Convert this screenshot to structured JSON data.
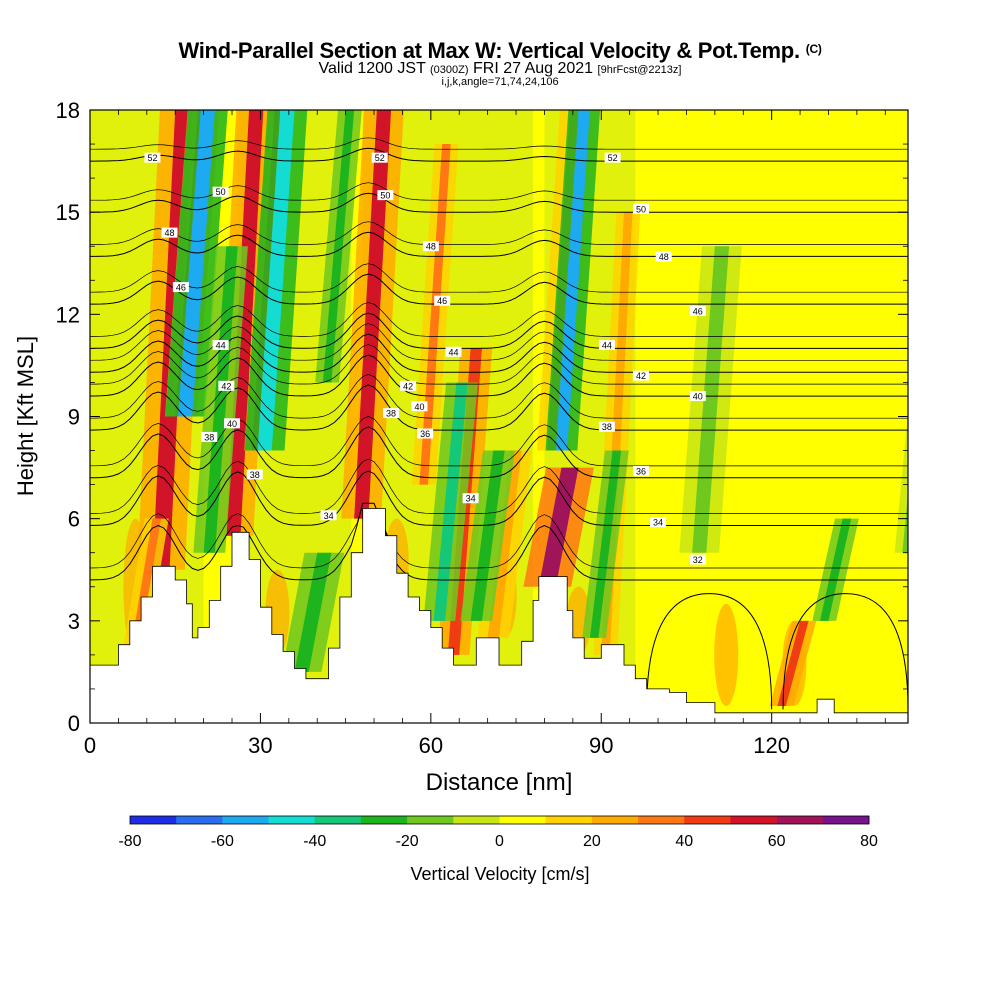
{
  "header": {
    "title": "Wind-Parallel Section at Max W: Vertical Velocity & Pot.Temp.",
    "copyright": "(C)",
    "valid_prefix": "Valid 1200 JST",
    "valid_utc": "(0300Z)",
    "valid_date": "FRI 27 Aug 2021",
    "forecast": "[9hrFcst@2213z]",
    "indices": "i,j,k,angle=71,74,24,106"
  },
  "chart_data": {
    "type": "heatmap",
    "xlabel": "Distance [nm]",
    "ylabel": "Height [Kft MSL]",
    "xlim": [
      0,
      144
    ],
    "ylim": [
      0,
      18
    ],
    "xticks": [
      0,
      30,
      60,
      90,
      120
    ],
    "yticks": [
      0,
      3,
      6,
      9,
      12,
      15,
      18
    ],
    "colorbar": {
      "label": "Vertical Velocity [cm/s]",
      "range": [
        -80,
        80
      ],
      "ticks": [
        -80,
        -60,
        -40,
        -20,
        0,
        20,
        40,
        60,
        80
      ],
      "colors": [
        "#1f2ee6",
        "#2a6ef0",
        "#1eaaf0",
        "#14dcd2",
        "#14c878",
        "#1eb41e",
        "#6ec81e",
        "#c8e614",
        "#ffff00",
        "#ffd200",
        "#ffaa00",
        "#ff7814",
        "#f03c14",
        "#d21428",
        "#a0145a",
        "#78148c"
      ]
    },
    "terrain": [
      [
        0,
        1.7
      ],
      [
        3,
        1.7
      ],
      [
        5,
        2.3
      ],
      [
        7,
        3.0
      ],
      [
        9,
        3.7
      ],
      [
        11,
        4.6
      ],
      [
        13,
        4.6
      ],
      [
        15,
        4.2
      ],
      [
        17,
        3.5
      ],
      [
        18,
        2.5
      ],
      [
        19,
        2.8
      ],
      [
        21,
        3.6
      ],
      [
        23,
        4.6
      ],
      [
        25,
        5.6
      ],
      [
        27,
        5.6
      ],
      [
        28,
        4.8
      ],
      [
        30,
        3.4
      ],
      [
        32,
        2.6
      ],
      [
        34,
        2.1
      ],
      [
        36,
        1.6
      ],
      [
        38,
        1.3
      ],
      [
        40,
        1.3
      ],
      [
        42,
        2.2
      ],
      [
        44,
        3.7
      ],
      [
        46,
        5.0
      ],
      [
        48,
        6.3
      ],
      [
        50,
        6.3
      ],
      [
        52,
        5.5
      ],
      [
        54,
        4.4
      ],
      [
        56,
        3.7
      ],
      [
        58,
        3.3
      ],
      [
        60,
        2.8
      ],
      [
        62,
        2.2
      ],
      [
        64,
        1.7
      ],
      [
        66,
        1.7
      ],
      [
        68,
        2.5
      ],
      [
        70,
        2.5
      ],
      [
        72,
        1.7
      ],
      [
        74,
        1.7
      ],
      [
        76,
        2.4
      ],
      [
        78,
        3.6
      ],
      [
        79,
        4.3
      ],
      [
        82,
        4.3
      ],
      [
        84,
        3.3
      ],
      [
        85,
        2.5
      ],
      [
        87,
        1.9
      ],
      [
        90,
        2.3
      ],
      [
        92,
        2.3
      ],
      [
        94,
        1.7
      ],
      [
        96,
        1.3
      ],
      [
        98,
        1.0
      ],
      [
        100,
        1.0
      ],
      [
        102,
        0.9
      ],
      [
        105,
        0.6
      ],
      [
        110,
        0.3
      ],
      [
        115,
        0.3
      ],
      [
        120,
        0.3
      ],
      [
        125,
        0.3
      ],
      [
        127,
        0.3
      ],
      [
        128,
        0.7
      ],
      [
        130,
        0.7
      ],
      [
        131,
        0.3
      ],
      [
        135,
        0.3
      ],
      [
        140,
        0.3
      ],
      [
        142,
        0.3
      ],
      [
        144,
        0.3
      ]
    ],
    "updrafts": [
      {
        "x": 11,
        "w": 3,
        "y0": 4.5,
        "y1": 18,
        "v": 55
      },
      {
        "x": 15,
        "w": 2,
        "y0": 9,
        "y1": 18,
        "v": 45
      },
      {
        "x": 24,
        "w": 2.5,
        "y0": 5.5,
        "y1": 18,
        "v": 50
      },
      {
        "x": 28.5,
        "w": 1.5,
        "y0": 8,
        "y1": 18,
        "v": 40
      },
      {
        "x": 46.5,
        "w": 2.5,
        "y0": 6,
        "y1": 18,
        "v": 55
      },
      {
        "x": 58,
        "w": 1.5,
        "y0": 7,
        "y1": 17,
        "v": 30
      },
      {
        "x": 63,
        "w": 2,
        "y0": 2,
        "y1": 11,
        "v": 40
      },
      {
        "x": 79,
        "w": 3,
        "y0": 4,
        "y1": 7.5,
        "v": 65
      },
      {
        "x": 80.5,
        "w": 2,
        "y0": 8,
        "y1": 18,
        "v": 30
      },
      {
        "x": 90,
        "w": 1.5,
        "y0": 2,
        "y1": 15,
        "v": 25
      },
      {
        "x": 121,
        "w": 1.5,
        "y0": 0.5,
        "y1": 3,
        "v": 45
      },
      {
        "x": 70,
        "w": 2,
        "y0": 2.5,
        "y1": 8,
        "v": 25
      },
      {
        "x": 7,
        "w": 1.5,
        "y0": 2,
        "y1": 6,
        "v": 30
      }
    ],
    "downdrafts": [
      {
        "x": 15.5,
        "w": 2.5,
        "y0": 9,
        "y1": 18,
        "v": -55
      },
      {
        "x": 20,
        "w": 2,
        "y0": 5,
        "y1": 14,
        "v": -30
      },
      {
        "x": 29.5,
        "w": 2.5,
        "y0": 8,
        "y1": 18,
        "v": -50
      },
      {
        "x": 36,
        "w": 2.5,
        "y0": 1.5,
        "y1": 5,
        "v": -30
      },
      {
        "x": 41,
        "w": 1.5,
        "y0": 10,
        "y1": 18,
        "v": -25
      },
      {
        "x": 60.5,
        "w": 2,
        "y0": 3,
        "y1": 10,
        "v": -35
      },
      {
        "x": 67,
        "w": 2,
        "y0": 3,
        "y1": 8,
        "v": -30
      },
      {
        "x": 82,
        "w": 2,
        "y0": 8,
        "y1": 18,
        "v": -60
      },
      {
        "x": 88,
        "w": 1.5,
        "y0": 2.5,
        "y1": 8,
        "v": -30
      },
      {
        "x": 106,
        "w": 2.5,
        "y0": 5,
        "y1": 14,
        "v": -20
      },
      {
        "x": 128.5,
        "w": 1.5,
        "y0": 3,
        "y1": 6,
        "v": -25
      },
      {
        "x": 143,
        "w": 1.5,
        "y0": 5,
        "y1": 12,
        "v": -20
      }
    ],
    "theta_isolines": [
      {
        "value": 32,
        "y": 4.2,
        "labels": [
          [
            107,
            4.8
          ]
        ]
      },
      {
        "value": 34,
        "y": 5.8,
        "labels": [
          [
            42,
            6.1
          ],
          [
            67,
            6.6
          ],
          [
            100,
            5.9
          ]
        ]
      },
      {
        "value": 36,
        "y": 7.2,
        "labels": [
          [
            59,
            8.5
          ],
          [
            97,
            7.4
          ]
        ]
      },
      {
        "value": 38,
        "y": 8.6,
        "labels": [
          [
            21,
            8.4
          ],
          [
            29,
            7.3
          ],
          [
            53,
            9.1
          ],
          [
            91,
            8.7
          ]
        ]
      },
      {
        "value": 40,
        "y": 9.6,
        "labels": [
          [
            25,
            8.8
          ],
          [
            58,
            9.3
          ],
          [
            107,
            9.6
          ]
        ]
      },
      {
        "value": 42,
        "y": 10.3,
        "labels": [
          [
            24,
            9.9
          ],
          [
            56,
            9.9
          ],
          [
            97,
            10.2
          ]
        ]
      },
      {
        "value": 44,
        "y": 11.0,
        "labels": [
          [
            23,
            11.1
          ],
          [
            64,
            10.9
          ],
          [
            91,
            11.1
          ]
        ]
      },
      {
        "value": 46,
        "y": 12.3,
        "labels": [
          [
            16,
            12.8
          ],
          [
            62,
            12.4
          ],
          [
            107,
            12.1
          ]
        ]
      },
      {
        "value": 48,
        "y": 13.7,
        "labels": [
          [
            14,
            14.4
          ],
          [
            60,
            14.0
          ],
          [
            101,
            13.7
          ]
        ]
      },
      {
        "value": 50,
        "y": 15.0,
        "labels": [
          [
            23,
            15.6
          ],
          [
            52,
            15.5
          ],
          [
            97,
            15.1
          ]
        ]
      },
      {
        "value": 52,
        "y": 16.5,
        "labels": [
          [
            11,
            16.6
          ],
          [
            51,
            16.6
          ],
          [
            92,
            16.6
          ]
        ]
      }
    ],
    "downslope_zones": [
      [
        0,
        20
      ],
      [
        26,
        46
      ],
      [
        48,
        78
      ],
      [
        80,
        96
      ]
    ]
  }
}
